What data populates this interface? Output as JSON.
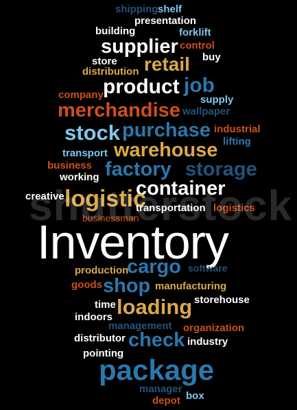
{
  "colors": {
    "background": "#000000",
    "white": "#ffffff",
    "blue": "#2b78ac",
    "lightblue": "#7fc7ee",
    "navy": "#24527a",
    "orange": "#cc4f1c",
    "gold": "#dba94a"
  },
  "watermark": "shutterstock",
  "words": [
    {
      "text": "shipping",
      "color": "navy"
    },
    {
      "text": "shelf",
      "color": "lightblue"
    },
    {
      "text": "presentation",
      "color": "white"
    },
    {
      "text": "building",
      "color": "white"
    },
    {
      "text": "forklift",
      "color": "lightblue"
    },
    {
      "text": "supplier",
      "color": "white"
    },
    {
      "text": "control",
      "color": "orange"
    },
    {
      "text": "buy",
      "color": "white"
    },
    {
      "text": "store",
      "color": "white"
    },
    {
      "text": "retail",
      "color": "gold"
    },
    {
      "text": "distribution",
      "color": "gold"
    },
    {
      "text": "product",
      "color": "white"
    },
    {
      "text": "job",
      "color": "blue"
    },
    {
      "text": "company",
      "color": "orange"
    },
    {
      "text": "supply",
      "color": "lightblue"
    },
    {
      "text": "merchandise",
      "color": "orange"
    },
    {
      "text": "wallpaper",
      "color": "navy"
    },
    {
      "text": "stock",
      "color": "lightblue"
    },
    {
      "text": "purchase",
      "color": "blue"
    },
    {
      "text": "industrial",
      "color": "orange"
    },
    {
      "text": "lifting",
      "color": "blue"
    },
    {
      "text": "warehouse",
      "color": "gold"
    },
    {
      "text": "transport",
      "color": "lightblue"
    },
    {
      "text": "business",
      "color": "orange"
    },
    {
      "text": "factory",
      "color": "blue"
    },
    {
      "text": "storage",
      "color": "navy"
    },
    {
      "text": "working",
      "color": "white"
    },
    {
      "text": "container",
      "color": "white"
    },
    {
      "text": "creative",
      "color": "white"
    },
    {
      "text": "logistic",
      "color": "gold"
    },
    {
      "text": "transportation",
      "color": "white"
    },
    {
      "text": "logistics",
      "color": "orange"
    },
    {
      "text": "businessman",
      "color": "orange"
    },
    {
      "text": "Inventory",
      "color": "white"
    },
    {
      "text": "production",
      "color": "gold"
    },
    {
      "text": "cargo",
      "color": "blue"
    },
    {
      "text": "software",
      "color": "navy"
    },
    {
      "text": "goods",
      "color": "orange"
    },
    {
      "text": "shop",
      "color": "blue"
    },
    {
      "text": "manufacturing",
      "color": "gold"
    },
    {
      "text": "time",
      "color": "white"
    },
    {
      "text": "loading",
      "color": "gold"
    },
    {
      "text": "storehouse",
      "color": "white"
    },
    {
      "text": "indoors",
      "color": "white"
    },
    {
      "text": "management",
      "color": "navy"
    },
    {
      "text": "organization",
      "color": "orange"
    },
    {
      "text": "distributor",
      "color": "white"
    },
    {
      "text": "check",
      "color": "blue"
    },
    {
      "text": "industry",
      "color": "white"
    },
    {
      "text": "pointing",
      "color": "white"
    },
    {
      "text": "package",
      "color": "blue"
    },
    {
      "text": "manager",
      "color": "navy"
    },
    {
      "text": "depot",
      "color": "orange"
    },
    {
      "text": "box",
      "color": "lightblue"
    }
  ]
}
